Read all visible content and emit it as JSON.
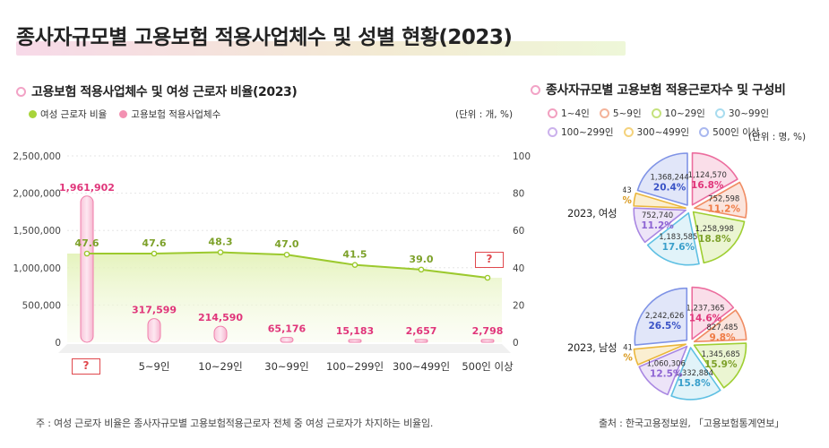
{
  "title": "종사자규모별 고용보험 적용사업체수 및 성별 현황(2023)",
  "left": {
    "section_title": "고용보험 적용사업체수 및 여성 근로자 비율(2023)",
    "legend": [
      {
        "label": "여성 근로자 비율",
        "color": "#a8d43a"
      },
      {
        "label": "고용보험 적용사업체수",
        "color": "#f391b2"
      }
    ],
    "unit": "(단위 : 개, %)"
  },
  "chart_data": [
    {
      "type": "bar+line",
      "categories": [
        "?",
        "5~9인",
        "10~29인",
        "30~99인",
        "100~299인",
        "300~499인",
        "500인 이상"
      ],
      "series": [
        {
          "name": "고용보험 적용사업체수",
          "axis": "left",
          "values": [
            1961902,
            317599,
            214590,
            65176,
            15183,
            2657,
            2798
          ],
          "labels": [
            "1,961,902",
            "317,599",
            "214,590",
            "65,176",
            "15,183",
            "2,657",
            "2,798"
          ],
          "color": "#e8408a"
        },
        {
          "name": "여성 근로자 비율",
          "axis": "right",
          "values": [
            47.6,
            47.6,
            48.3,
            47.0,
            41.5,
            39.0,
            null
          ],
          "labels": [
            "47.6",
            "47.6",
            "48.3",
            "47.0",
            "41.5",
            "39.0",
            "?"
          ],
          "color": "#9cc92e"
        }
      ],
      "y_left": {
        "range": [
          0,
          2500000
        ],
        "ticks": [
          0,
          500000,
          1000000,
          1500000,
          2000000,
          2500000
        ],
        "tick_labels": [
          "0",
          "500,000",
          "1,000,000",
          "1,500,000",
          "2,000,000",
          "2,500,000"
        ]
      },
      "y_right": {
        "range": [
          0,
          100
        ],
        "ticks": [
          0,
          20,
          40,
          60,
          80,
          100
        ],
        "tick_labels": [
          "0",
          "20",
          "40",
          "60",
          "80",
          "100"
        ]
      },
      "unknown_markers": [
        "?",
        "?"
      ]
    },
    {
      "type": "pie",
      "title": "종사자규모별 고용보험 적용근로자수 및 구성비",
      "categories": [
        "1~4인",
        "5~9인",
        "10~29인",
        "30~99인",
        "100~299인",
        "300~499인",
        "500인 이상"
      ],
      "colors": [
        "#f2a0c0",
        "#f4b39a",
        "#c5e27d",
        "#a8dcef",
        "#cbb1ec",
        "#f4d27c",
        "#a9b8ef"
      ],
      "unit": "(단위 : 명, %)",
      "pies": [
        {
          "label": "2023, 여성",
          "values": [
            1124570,
            752598,
            1258998,
            1183585,
            752740,
            266043,
            1368244
          ],
          "value_labels": [
            "1,124,570",
            "752,598",
            "1,258,998",
            "1,183,585",
            "752,740",
            "266,043",
            "1,368,244"
          ],
          "percents": [
            "16.8%",
            "11.2%",
            "18.8%",
            "17.6%",
            "11.2%",
            "4.0%",
            "20.4%"
          ]
        },
        {
          "label": "2023, 남성",
          "values": [
            1237365,
            827485,
            1345685,
            1332884,
            1060306,
            416141,
            2242626
          ],
          "value_labels": [
            "1,237,365",
            "827,485",
            "1,345,685",
            "1,332,884",
            "1,060,306",
            "416,141",
            "2,242,626"
          ],
          "percents": [
            "14.6%",
            "9.8%",
            "15.9%",
            "15.8%",
            "12.5%",
            "4.9%",
            "26.5%"
          ]
        }
      ]
    }
  ],
  "note": "주 : 여성 근로자 비율은 종사자규모별 고용보험적용근로자 전체 중 여성 근로자가 차지하는 비율임.",
  "source": "출처 : 한국고용정보원, 「고용보험통계연보」"
}
